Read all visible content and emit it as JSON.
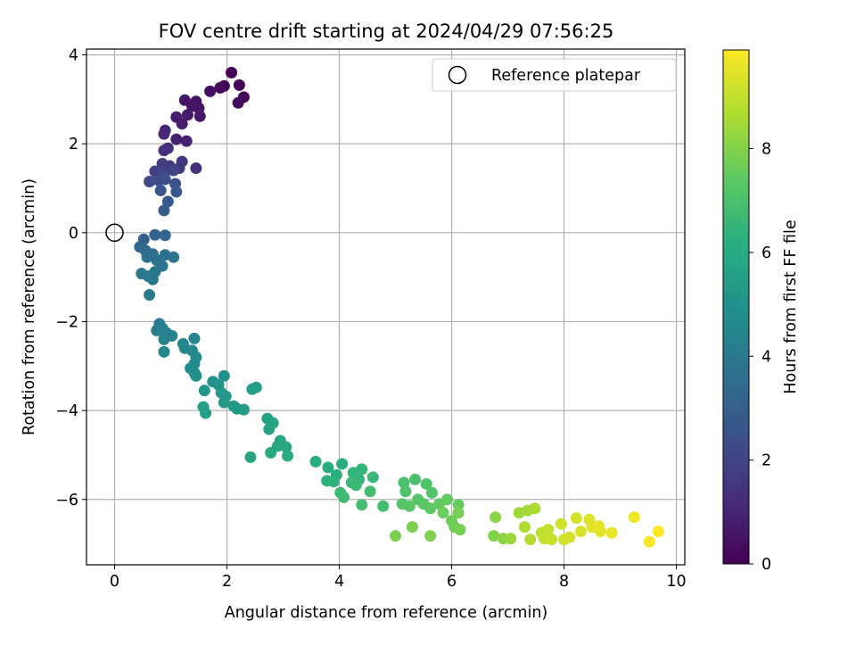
{
  "chart_data": {
    "type": "scatter",
    "title": "FOV centre drift starting at 2024/04/29 07:56:25",
    "xlabel": "Angular distance from reference (arcmin)",
    "ylabel": "Rotation from reference (arcmin)",
    "xlim": [
      -0.5,
      10.15
    ],
    "ylim": [
      -7.47,
      4.13
    ],
    "xticks": [
      0,
      2,
      4,
      6,
      8,
      10
    ],
    "yticks": [
      -6,
      -4,
      -2,
      0,
      2,
      4
    ],
    "xtick_labels": [
      "0",
      "2",
      "4",
      "6",
      "8",
      "10"
    ],
    "ytick_labels": [
      "−6",
      "−4",
      "−2",
      "0",
      "2",
      "4"
    ],
    "grid": true,
    "legend": {
      "position": "top-right",
      "label": "Reference platepar"
    },
    "reference_point": {
      "x": 0,
      "y": 0
    },
    "colorbar": {
      "label": "Hours from first FF file",
      "range": [
        0,
        9.9
      ],
      "ticks": [
        0,
        2,
        4,
        6,
        8
      ],
      "colormap": "viridis"
    },
    "points": [
      [
        2.08,
        3.6,
        0.05
      ],
      [
        2.22,
        3.32,
        0.1
      ],
      [
        2.3,
        3.05,
        0.15
      ],
      [
        1.95,
        3.3,
        0.2
      ],
      [
        1.88,
        3.26,
        0.25
      ],
      [
        2.2,
        2.92,
        0.3
      ],
      [
        1.7,
        3.18,
        0.4
      ],
      [
        1.45,
        2.95,
        0.45
      ],
      [
        1.38,
        2.85,
        0.5
      ],
      [
        1.25,
        2.98,
        0.55
      ],
      [
        1.5,
        2.8,
        0.6
      ],
      [
        1.52,
        2.62,
        0.65
      ],
      [
        1.3,
        2.65,
        0.7
      ],
      [
        1.1,
        2.6,
        0.75
      ],
      [
        1.2,
        2.45,
        0.8
      ],
      [
        1.1,
        2.1,
        0.85
      ],
      [
        1.28,
        2.06,
        0.9
      ],
      [
        0.9,
        2.3,
        1.0
      ],
      [
        0.88,
        2.22,
        1.1
      ],
      [
        0.95,
        1.9,
        1.2
      ],
      [
        0.88,
        1.85,
        1.3
      ],
      [
        1.45,
        1.45,
        1.4
      ],
      [
        1.2,
        1.6,
        1.5
      ],
      [
        1.15,
        1.45,
        1.6
      ],
      [
        0.98,
        1.5,
        1.7
      ],
      [
        0.85,
        1.55,
        1.8
      ],
      [
        0.72,
        1.38,
        1.9
      ],
      [
        1.05,
        1.4,
        2.0
      ],
      [
        0.88,
        1.32,
        2.1
      ],
      [
        0.62,
        1.15,
        2.2
      ],
      [
        0.78,
        1.18,
        2.3
      ],
      [
        0.9,
        1.2,
        2.4
      ],
      [
        1.08,
        1.1,
        2.5
      ],
      [
        0.82,
        0.95,
        2.6
      ],
      [
        1.1,
        0.92,
        2.7
      ],
      [
        0.95,
        0.7,
        2.8
      ],
      [
        0.88,
        0.5,
        2.9
      ],
      [
        0.52,
        -0.15,
        3.0
      ],
      [
        0.72,
        -0.05,
        3.1
      ],
      [
        0.9,
        -0.06,
        3.2
      ],
      [
        0.45,
        -0.32,
        3.3
      ],
      [
        0.55,
        -0.4,
        3.4
      ],
      [
        0.68,
        -0.48,
        3.5
      ],
      [
        0.58,
        -0.55,
        3.6
      ],
      [
        0.75,
        -0.62,
        3.65
      ],
      [
        0.9,
        -0.5,
        3.7
      ],
      [
        1.05,
        -0.55,
        3.75
      ],
      [
        0.85,
        -0.75,
        3.8
      ],
      [
        0.72,
        -0.88,
        3.85
      ],
      [
        0.48,
        -0.92,
        3.9
      ],
      [
        0.6,
        -0.98,
        3.95
      ],
      [
        0.68,
        -1.05,
        4.0
      ],
      [
        0.62,
        -1.4,
        4.05
      ],
      [
        0.8,
        -2.05,
        4.1
      ],
      [
        0.85,
        -2.15,
        4.15
      ],
      [
        0.75,
        -2.2,
        4.2
      ],
      [
        0.92,
        -2.25,
        4.3
      ],
      [
        1.02,
        -2.32,
        4.35
      ],
      [
        0.88,
        -2.4,
        4.4
      ],
      [
        1.22,
        -2.5,
        4.45
      ],
      [
        1.42,
        -2.38,
        4.5
      ],
      [
        1.25,
        -2.6,
        4.55
      ],
      [
        1.38,
        -2.65,
        4.6
      ],
      [
        0.88,
        -2.68,
        4.65
      ],
      [
        1.45,
        -2.8,
        4.7
      ],
      [
        1.42,
        -2.95,
        4.75
      ],
      [
        1.35,
        -3.05,
        4.8
      ],
      [
        1.42,
        -3.15,
        4.85
      ],
      [
        1.45,
        -3.22,
        4.9
      ],
      [
        1.95,
        -3.22,
        4.95
      ],
      [
        1.75,
        -3.35,
        5.0
      ],
      [
        1.85,
        -3.42,
        5.05
      ],
      [
        1.6,
        -3.55,
        5.1
      ],
      [
        1.9,
        -3.6,
        5.15
      ],
      [
        1.98,
        -3.68,
        5.2
      ],
      [
        1.95,
        -3.82,
        5.25
      ],
      [
        2.12,
        -3.9,
        5.3
      ],
      [
        2.18,
        -3.96,
        5.35
      ],
      [
        2.3,
        -3.98,
        5.4
      ],
      [
        2.45,
        -3.52,
        5.45
      ],
      [
        2.52,
        -3.48,
        5.5
      ],
      [
        1.58,
        -3.92,
        5.55
      ],
      [
        1.62,
        -4.06,
        5.6
      ],
      [
        2.72,
        -4.18,
        5.65
      ],
      [
        2.82,
        -4.28,
        5.7
      ],
      [
        2.75,
        -4.42,
        5.75
      ],
      [
        2.42,
        -5.05,
        5.8
      ],
      [
        2.95,
        -4.68,
        5.85
      ],
      [
        3.05,
        -4.82,
        5.9
      ],
      [
        2.9,
        -4.8,
        5.95
      ],
      [
        2.78,
        -4.95,
        6.0
      ],
      [
        3.08,
        -5.02,
        6.05
      ],
      [
        3.58,
        -5.15,
        6.1
      ],
      [
        3.8,
        -5.28,
        6.15
      ],
      [
        4.05,
        -5.2,
        6.2
      ],
      [
        3.95,
        -5.45,
        6.25
      ],
      [
        3.78,
        -5.58,
        6.3
      ],
      [
        3.9,
        -5.6,
        6.35
      ],
      [
        4.25,
        -5.4,
        6.4
      ],
      [
        4.35,
        -5.55,
        6.45
      ],
      [
        4.4,
        -5.32,
        6.5
      ],
      [
        4.6,
        -5.5,
        6.55
      ],
      [
        4.22,
        -5.62,
        6.6
      ],
      [
        4.3,
        -5.68,
        6.65
      ],
      [
        4.02,
        -5.85,
        6.7
      ],
      [
        4.08,
        -5.95,
        6.75
      ],
      [
        4.55,
        -5.82,
        6.8
      ],
      [
        4.4,
        -6.12,
        6.85
      ],
      [
        4.78,
        -6.15,
        6.9
      ],
      [
        5.15,
        -5.62,
        6.95
      ],
      [
        5.35,
        -5.55,
        7.0
      ],
      [
        5.18,
        -5.82,
        7.05
      ],
      [
        5.55,
        -5.65,
        7.1
      ],
      [
        5.65,
        -5.85,
        7.15
      ],
      [
        5.4,
        -6.0,
        7.2
      ],
      [
        5.12,
        -6.1,
        7.25
      ],
      [
        5.25,
        -6.15,
        7.3
      ],
      [
        5.5,
        -6.1,
        7.35
      ],
      [
        5.62,
        -6.2,
        7.4
      ],
      [
        5.78,
        -6.1,
        7.45
      ],
      [
        5.92,
        -6.0,
        7.5
      ],
      [
        6.12,
        -6.12,
        7.55
      ],
      [
        5.85,
        -6.3,
        7.6
      ],
      [
        6.0,
        -6.48,
        7.65
      ],
      [
        6.05,
        -6.62,
        7.7
      ],
      [
        6.15,
        -6.68,
        7.75
      ],
      [
        6.12,
        -6.3,
        7.8
      ],
      [
        5.3,
        -6.62,
        7.85
      ],
      [
        5.0,
        -6.82,
        7.9
      ],
      [
        5.62,
        -6.82,
        7.95
      ],
      [
        6.75,
        -6.82,
        8.0
      ],
      [
        6.78,
        -6.4,
        8.1
      ],
      [
        6.92,
        -6.88,
        8.2
      ],
      [
        7.05,
        -6.88,
        8.3
      ],
      [
        7.2,
        -6.3,
        8.4
      ],
      [
        7.35,
        -6.25,
        8.5
      ],
      [
        7.48,
        -6.2,
        8.6
      ],
      [
        7.3,
        -6.62,
        8.7
      ],
      [
        7.4,
        -6.9,
        8.8
      ],
      [
        7.6,
        -6.75,
        8.9
      ],
      [
        7.72,
        -6.68,
        9.0
      ],
      [
        7.65,
        -6.88,
        9.05
      ],
      [
        7.78,
        -6.9,
        9.1
      ],
      [
        7.95,
        -6.55,
        9.15
      ],
      [
        8.0,
        -6.9,
        9.2
      ],
      [
        8.1,
        -6.85,
        9.25
      ],
      [
        8.22,
        -6.42,
        9.3
      ],
      [
        8.3,
        -6.72,
        9.35
      ],
      [
        8.45,
        -6.45,
        9.4
      ],
      [
        8.5,
        -6.62,
        9.45
      ],
      [
        8.62,
        -6.6,
        9.5
      ],
      [
        8.65,
        -6.72,
        9.55
      ],
      [
        8.85,
        -6.75,
        9.6
      ],
      [
        9.25,
        -6.4,
        9.7
      ],
      [
        9.52,
        -6.95,
        9.8
      ],
      [
        9.68,
        -6.72,
        9.9
      ]
    ]
  }
}
